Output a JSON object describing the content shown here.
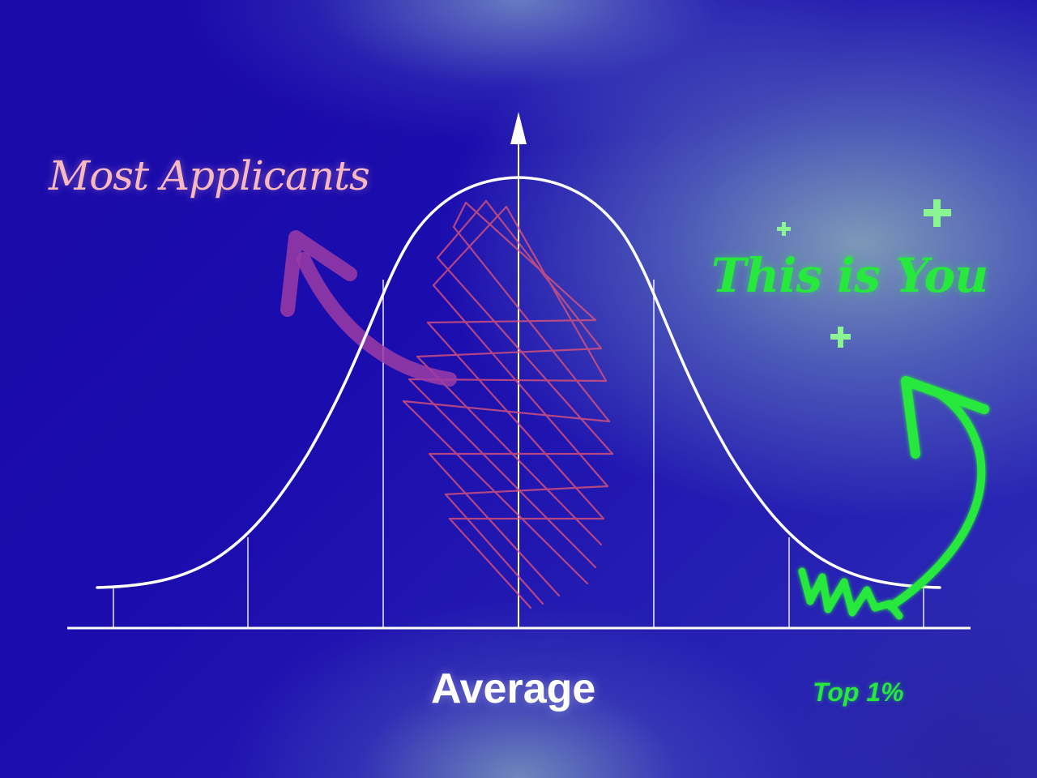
{
  "labels": {
    "most_applicants": "Most Applicants",
    "this_is_you": "This is You",
    "average": "Average",
    "top_percent": "Top 1%"
  },
  "colors": {
    "background": "#1a0aa8",
    "curve": "#ffffff",
    "most_applicants_text": "#f7b8c0",
    "scribble": "#d9527a",
    "pink_arrow": "#9b3ca6",
    "accent_green": "#27e83c",
    "sparkle": "#8af592"
  },
  "icons": {
    "pink_arrow": "curved-arrow-up-left-icon",
    "green_arrow": "curved-arrow-up-icon",
    "sparkles": "plus-sparkle-icon"
  }
}
